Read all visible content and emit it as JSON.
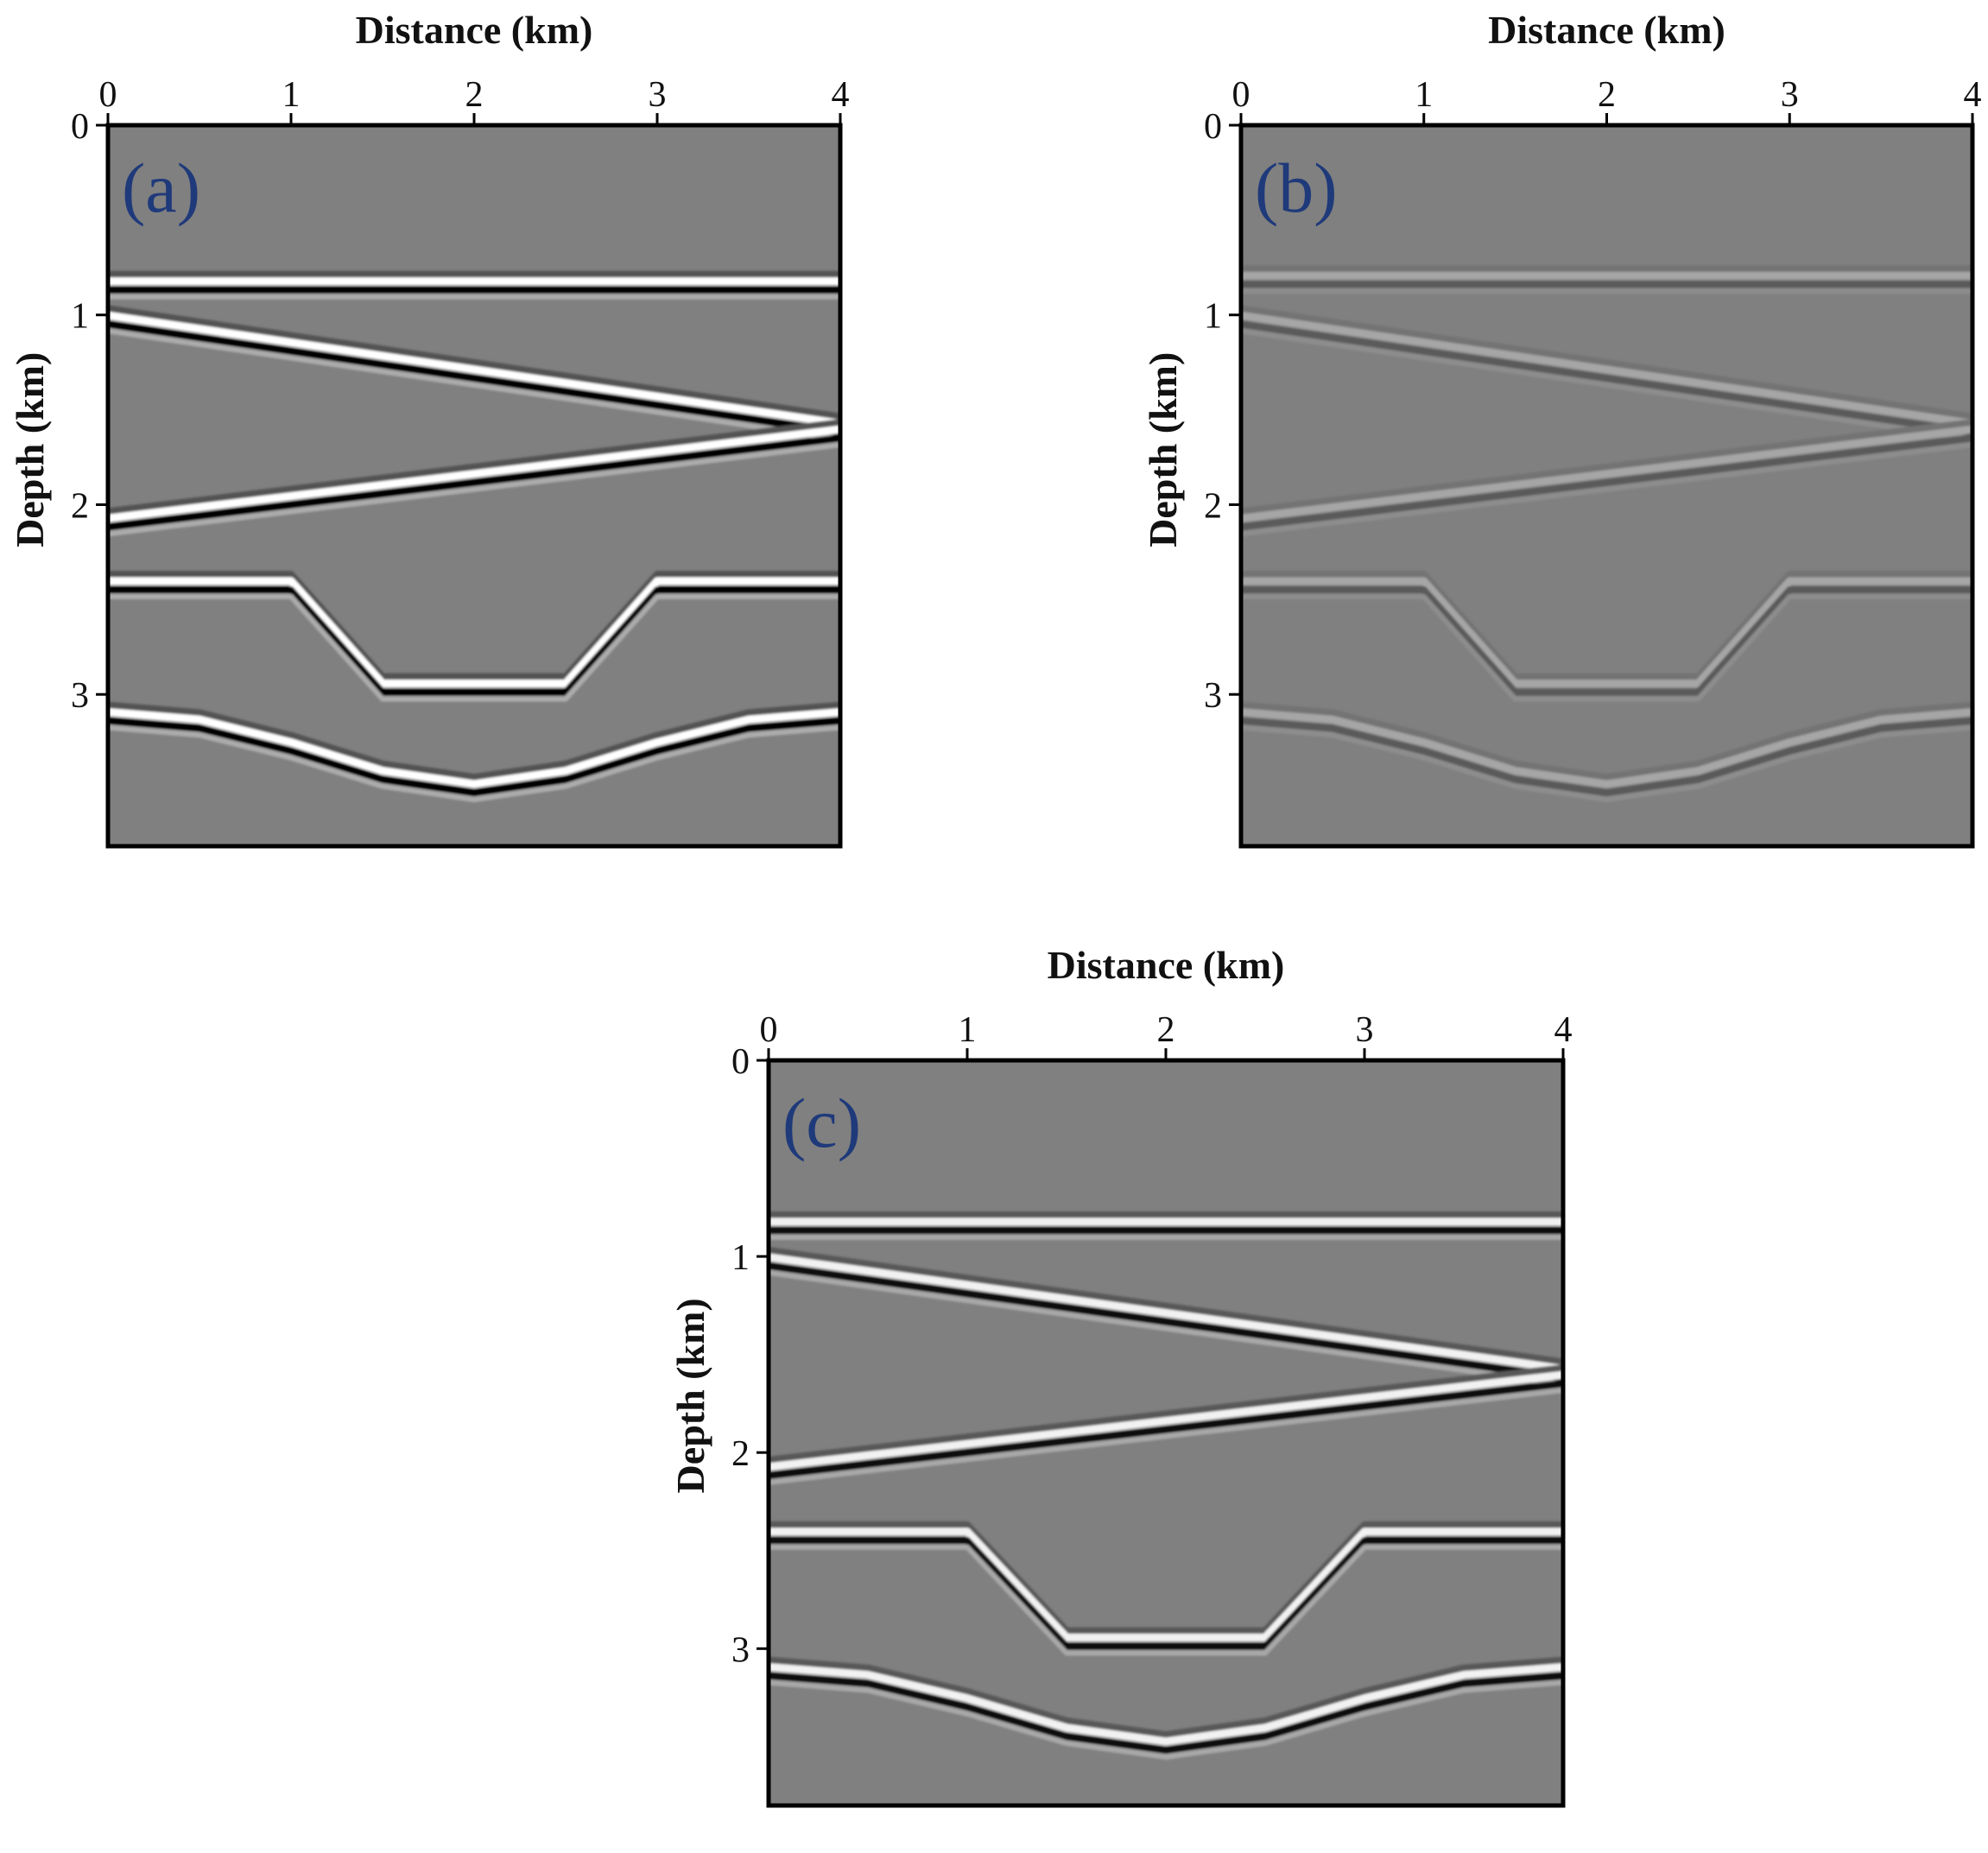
{
  "colors": {
    "background_section": "#808080",
    "positive_peak": "#ffffff",
    "negative_trough": "#000000",
    "panel_label": "#1f3a7a"
  },
  "chart_data": [
    {
      "type": "heatmap",
      "panel_label": "(a)",
      "xlabel": "Distance (km)",
      "ylabel": "Depth (km)",
      "xlim": [
        0,
        4
      ],
      "ylim": [
        0,
        3.8
      ],
      "y_direction": "down",
      "xticks": [
        0,
        1,
        2,
        3,
        4
      ],
      "yticks": [
        0,
        1,
        2,
        3
      ],
      "reflector_amplitude": 1.0,
      "reflectors": [
        {
          "kind": "flat",
          "x": [
            0,
            4
          ],
          "depth": [
            0.85,
            0.85
          ]
        },
        {
          "kind": "dipping",
          "x": [
            0,
            4
          ],
          "depth": [
            1.03,
            1.6
          ]
        },
        {
          "kind": "dipping",
          "x": [
            0,
            4
          ],
          "depth": [
            2.1,
            1.63
          ]
        },
        {
          "kind": "graben",
          "x": [
            0,
            1.0,
            1.5,
            2.5,
            3.0,
            4.0
          ],
          "depth": [
            2.43,
            2.43,
            2.97,
            2.97,
            2.43,
            2.43
          ]
        },
        {
          "kind": "syncline",
          "x": [
            0,
            0.5,
            1.0,
            1.5,
            2.0,
            2.5,
            3.0,
            3.5,
            4.0
          ],
          "depth": [
            3.12,
            3.16,
            3.28,
            3.43,
            3.5,
            3.43,
            3.28,
            3.16,
            3.12
          ]
        }
      ]
    },
    {
      "type": "heatmap",
      "panel_label": "(b)",
      "xlabel": "Distance (km)",
      "ylabel": "Depth (km)",
      "xlim": [
        0,
        4
      ],
      "ylim": [
        0,
        3.8
      ],
      "y_direction": "down",
      "xticks": [
        0,
        1,
        2,
        3,
        4
      ],
      "yticks": [
        0,
        1,
        2,
        3
      ],
      "reflector_amplitude": 0.3,
      "reflectors": [
        {
          "kind": "flat",
          "x": [
            0,
            4
          ],
          "depth": [
            0.82,
            0.82
          ]
        },
        {
          "kind": "dipping",
          "x": [
            0,
            4
          ],
          "depth": [
            1.03,
            1.6
          ]
        },
        {
          "kind": "dipping",
          "x": [
            0,
            4
          ],
          "depth": [
            2.1,
            1.63
          ]
        },
        {
          "kind": "graben",
          "x": [
            0,
            1.0,
            1.5,
            2.5,
            3.0,
            4.0
          ],
          "depth": [
            2.43,
            2.43,
            2.97,
            2.97,
            2.43,
            2.43
          ]
        },
        {
          "kind": "syncline",
          "x": [
            0,
            0.5,
            1.0,
            1.5,
            2.0,
            2.5,
            3.0,
            3.5,
            4.0
          ],
          "depth": [
            3.12,
            3.16,
            3.28,
            3.43,
            3.5,
            3.43,
            3.28,
            3.16,
            3.12
          ]
        }
      ]
    },
    {
      "type": "heatmap",
      "panel_label": "(c)",
      "xlabel": "Distance (km)",
      "ylabel": "Depth (km)",
      "xlim": [
        0,
        4
      ],
      "ylim": [
        0,
        3.8
      ],
      "y_direction": "down",
      "xticks": [
        0,
        1,
        2,
        3,
        4
      ],
      "yticks": [
        0,
        1,
        2,
        3
      ],
      "reflector_amplitude": 0.9,
      "reflectors": [
        {
          "kind": "flat",
          "x": [
            0,
            4
          ],
          "depth": [
            0.85,
            0.85
          ]
        },
        {
          "kind": "dipping",
          "x": [
            0,
            4
          ],
          "depth": [
            1.03,
            1.6
          ]
        },
        {
          "kind": "dipping",
          "x": [
            0,
            4
          ],
          "depth": [
            2.1,
            1.63
          ]
        },
        {
          "kind": "graben",
          "x": [
            0,
            1.0,
            1.5,
            2.5,
            3.0,
            4.0
          ],
          "depth": [
            2.43,
            2.43,
            2.97,
            2.97,
            2.43,
            2.43
          ]
        },
        {
          "kind": "syncline",
          "x": [
            0,
            0.5,
            1.0,
            1.5,
            2.0,
            2.5,
            3.0,
            3.5,
            4.0
          ],
          "depth": [
            3.12,
            3.16,
            3.28,
            3.43,
            3.5,
            3.43,
            3.28,
            3.16,
            3.12
          ]
        }
      ]
    }
  ]
}
